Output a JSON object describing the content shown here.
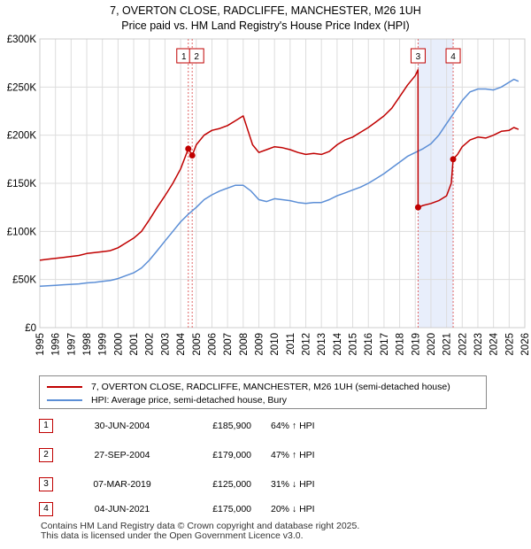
{
  "title_line1": "7, OVERTON CLOSE, RADCLIFFE, MANCHESTER, M26 1UH",
  "title_line2": "Price paid vs. HM Land Registry's House Price Index (HPI)",
  "legend": {
    "property_label": "7, OVERTON CLOSE, RADCLIFFE, MANCHESTER, M26 1UH (semi-detached house)",
    "hpi_label": "HPI: Average price, semi-detached house, Bury"
  },
  "colors": {
    "property": "#c00000",
    "hpi": "#5b8ed6",
    "highlight": "#e8eefb",
    "marker_line_red": "#e06666",
    "marker_line_blue": "#7f9fdc",
    "grid": "#dddddd"
  },
  "sales": [
    {
      "num": "1",
      "date": "30-JUN-2004",
      "price": "£185,900",
      "hpi": "64% ↑ HPI"
    },
    {
      "num": "2",
      "date": "27-SEP-2004",
      "price": "£179,000",
      "hpi": "47% ↑ HPI"
    },
    {
      "num": "3",
      "date": "07-MAR-2019",
      "price": "£125,000",
      "hpi": "31% ↓ HPI"
    },
    {
      "num": "4",
      "date": "04-JUN-2021",
      "price": "£175,000",
      "hpi": "20% ↓ HPI"
    }
  ],
  "footer": {
    "line1": "Contains HM Land Registry data © Crown copyright and database right 2025.",
    "line2": "This data is licensed under the Open Government Licence v3.0."
  },
  "chart_data": {
    "type": "line",
    "xlim": [
      1995,
      2026
    ],
    "ylim": [
      0,
      300000
    ],
    "yticks": [
      0,
      50000,
      100000,
      150000,
      200000,
      250000,
      300000
    ],
    "ytick_labels": [
      "£0",
      "£50K",
      "£100K",
      "£150K",
      "£200K",
      "£250K",
      "£300K"
    ],
    "xticks": [
      1995,
      1996,
      1997,
      1998,
      1999,
      2000,
      2001,
      2002,
      2003,
      2004,
      2005,
      2006,
      2007,
      2008,
      2009,
      2010,
      2011,
      2012,
      2013,
      2014,
      2015,
      2016,
      2017,
      2018,
      2019,
      2020,
      2021,
      2022,
      2023,
      2024,
      2025,
      2026
    ],
    "xtick_labels": [
      "1995",
      "1996",
      "1997",
      "1998",
      "1999",
      "2000",
      "2001",
      "2002",
      "2003",
      "2004",
      "2005",
      "2006",
      "2007",
      "2008",
      "2009",
      "2010",
      "2011",
      "2012",
      "2013",
      "2014",
      "2015",
      "2016",
      "2017",
      "2018",
      "2019",
      "2020",
      "2021",
      "2022",
      "2023",
      "2024",
      "2025",
      "2026"
    ],
    "highlight_range": [
      2019.18,
      2021.42
    ],
    "sale_markers": [
      {
        "label": "1",
        "x": 2004.49,
        "y": 185900
      },
      {
        "label": "2",
        "x": 2004.74,
        "y": 179000
      },
      {
        "label": "3",
        "x": 2019.18,
        "y": 125000
      },
      {
        "label": "4",
        "x": 2021.42,
        "y": 175000
      }
    ],
    "series": [
      {
        "name": "7, OVERTON CLOSE, RADCLIFFE, MANCHESTER, M26 1UH (semi-detached house)",
        "color": "#c00000",
        "x": [
          1995.0,
          1995.5,
          1996.0,
          1996.5,
          1997.0,
          1997.5,
          1998.0,
          1998.5,
          1999.0,
          1999.5,
          2000.0,
          2000.5,
          2001.0,
          2001.5,
          2002.0,
          2002.5,
          2003.0,
          2003.5,
          2004.0,
          2004.49,
          2004.74,
          2005.0,
          2005.5,
          2006.0,
          2006.5,
          2007.0,
          2007.5,
          2008.0,
          2008.3,
          2008.6,
          2009.0,
          2009.5,
          2010.0,
          2010.5,
          2011.0,
          2011.5,
          2012.0,
          2012.5,
          2013.0,
          2013.5,
          2014.0,
          2014.5,
          2015.0,
          2015.5,
          2016.0,
          2016.5,
          2017.0,
          2017.5,
          2018.0,
          2018.5,
          2019.0,
          2019.17,
          2019.18,
          2019.5,
          2020.0,
          2020.5,
          2021.0,
          2021.3,
          2021.42,
          2021.7,
          2022.0,
          2022.5,
          2023.0,
          2023.5,
          2024.0,
          2024.5,
          2025.0,
          2025.3,
          2025.6
        ],
        "values": [
          70000,
          71000,
          72000,
          73000,
          74000,
          75000,
          77000,
          78000,
          79000,
          80000,
          83000,
          88000,
          93000,
          100000,
          112000,
          125000,
          137000,
          150000,
          165000,
          185900,
          179000,
          190000,
          200000,
          205000,
          207000,
          210000,
          215000,
          220000,
          205000,
          190000,
          182000,
          185000,
          188000,
          187000,
          185000,
          182000,
          180000,
          181000,
          180000,
          183000,
          190000,
          195000,
          198000,
          203000,
          208000,
          214000,
          220000,
          228000,
          240000,
          252000,
          262000,
          268000,
          125000,
          127000,
          129000,
          132000,
          137000,
          150000,
          175000,
          180000,
          188000,
          195000,
          198000,
          197000,
          200000,
          204000,
          205000,
          208000,
          206000
        ]
      },
      {
        "name": "HPI: Average price, semi-detached house, Bury",
        "color": "#5b8ed6",
        "x": [
          1995.0,
          1995.5,
          1996.0,
          1996.5,
          1997.0,
          1997.5,
          1998.0,
          1998.5,
          1999.0,
          1999.5,
          2000.0,
          2000.5,
          2001.0,
          2001.5,
          2002.0,
          2002.5,
          2003.0,
          2003.5,
          2004.0,
          2004.5,
          2005.0,
          2005.5,
          2006.0,
          2006.5,
          2007.0,
          2007.5,
          2008.0,
          2008.5,
          2009.0,
          2009.5,
          2010.0,
          2010.5,
          2011.0,
          2011.5,
          2012.0,
          2012.5,
          2013.0,
          2013.5,
          2014.0,
          2014.5,
          2015.0,
          2015.5,
          2016.0,
          2016.5,
          2017.0,
          2017.5,
          2018.0,
          2018.5,
          2019.0,
          2019.5,
          2020.0,
          2020.5,
          2021.0,
          2021.5,
          2022.0,
          2022.5,
          2023.0,
          2023.5,
          2024.0,
          2024.5,
          2025.0,
          2025.3,
          2025.6
        ],
        "values": [
          43000,
          43500,
          44000,
          44500,
          45000,
          45500,
          46500,
          47000,
          48000,
          49000,
          51000,
          54000,
          57000,
          62000,
          70000,
          80000,
          90000,
          100000,
          110000,
          118000,
          125000,
          133000,
          138000,
          142000,
          145000,
          148000,
          148000,
          142000,
          133000,
          131000,
          134000,
          133000,
          132000,
          130000,
          129000,
          130000,
          130000,
          133000,
          137000,
          140000,
          143000,
          146000,
          150000,
          155000,
          160000,
          166000,
          172000,
          178000,
          182000,
          186000,
          191000,
          200000,
          212000,
          224000,
          236000,
          245000,
          248000,
          248000,
          247000,
          250000,
          255000,
          258000,
          256000
        ]
      }
    ]
  }
}
